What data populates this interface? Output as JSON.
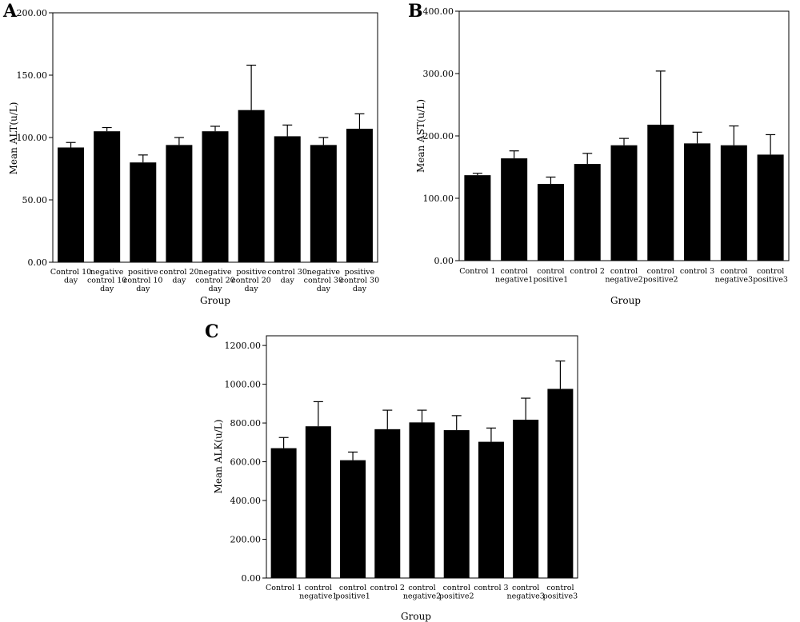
{
  "chart_data": [
    {
      "panel_label": "A",
      "type": "bar",
      "categories": [
        [
          "Control 10",
          "day"
        ],
        [
          "negative",
          "control 10",
          "day"
        ],
        [
          "positive",
          "control 10",
          "day"
        ],
        [
          "control 20",
          "day"
        ],
        [
          "negative",
          "control 20",
          "day"
        ],
        [
          "positive",
          "control 20",
          "day"
        ],
        [
          "control 30",
          "day"
        ],
        [
          "negative",
          "control 30",
          "day"
        ],
        [
          "positive",
          "control 30",
          "day"
        ]
      ],
      "values": [
        92,
        105,
        80,
        94,
        105,
        122,
        101,
        94,
        107
      ],
      "error_upper": [
        96,
        108,
        86,
        100,
        109,
        158,
        110,
        100,
        119
      ],
      "xlabel": "Group",
      "ylabel": "Mean ALT(u/L)",
      "ylim": [
        0,
        200
      ],
      "yticks": [
        "0.00",
        "50.00",
        "100.00",
        "150.00",
        "200.00"
      ],
      "bar_color": "#000000",
      "grid": false
    },
    {
      "panel_label": "B",
      "type": "bar",
      "categories": [
        [
          "Control 1"
        ],
        [
          "control",
          "negative1"
        ],
        [
          "control",
          "positive1"
        ],
        [
          "control 2"
        ],
        [
          "control",
          "negative2"
        ],
        [
          "control",
          "positive2"
        ],
        [
          "control 3"
        ],
        [
          "control",
          "negative3"
        ],
        [
          "control",
          "positive3"
        ]
      ],
      "values": [
        137,
        164,
        123,
        155,
        185,
        218,
        188,
        185,
        170
      ],
      "error_upper": [
        140,
        176,
        134,
        172,
        196,
        304,
        206,
        216,
        202
      ],
      "xlabel": "Group",
      "ylabel": "Mean AST(u/L)",
      "ylim": [
        0,
        400
      ],
      "yticks": [
        "0.00",
        "100.00",
        "200.00",
        "300.00",
        "400.00"
      ],
      "bar_color": "#000000",
      "grid": false
    },
    {
      "panel_label": "C",
      "type": "bar",
      "categories": [
        [
          "Control 1"
        ],
        [
          "control",
          "negative1"
        ],
        [
          "control",
          "positive1"
        ],
        [
          "control 2"
        ],
        [
          "control",
          "negative2"
        ],
        [
          "control",
          "positive2"
        ],
        [
          "control 3"
        ],
        [
          "control",
          "negative3"
        ],
        [
          "control",
          "positive3"
        ]
      ],
      "values": [
        670,
        783,
        608,
        768,
        803,
        763,
        703,
        817,
        976
      ],
      "error_upper": [
        725,
        910,
        650,
        866,
        866,
        838,
        774,
        928,
        1120
      ],
      "xlabel": "Group",
      "ylabel": "Mean ALK(u/L)",
      "ylim": [
        0,
        1250
      ],
      "yticks": [
        "0.00",
        "200.00",
        "400.00",
        "600.00",
        "800.00",
        "1000.00",
        "1200.00"
      ],
      "bar_color": "#000000",
      "grid": false
    }
  ]
}
